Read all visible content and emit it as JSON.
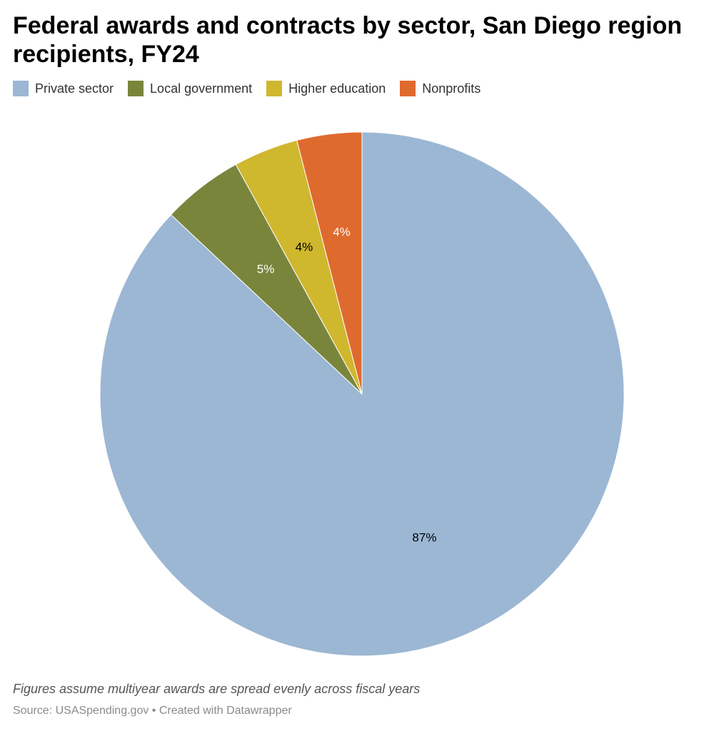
{
  "title": "Federal awards and contracts by sector, San Diego region recipients, FY24",
  "note": "Figures assume multiyear awards are spread evenly across fiscal years",
  "source": "Source: USASpending.gov • Created with Datawrapper",
  "chart_data": {
    "type": "pie",
    "title": "Federal awards and contracts by sector, San Diego region recipients, FY24",
    "legend_position": "top-left",
    "slices": [
      {
        "name": "Private sector",
        "value": 87,
        "label": "87%",
        "color": "#9bb7d3",
        "label_color": "#000000"
      },
      {
        "name": "Local government",
        "value": 5,
        "label": "5%",
        "color": "#7a853c",
        "label_color": "#ffffff"
      },
      {
        "name": "Higher education",
        "value": 4,
        "label": "4%",
        "color": "#cfb72e",
        "label_color": "#000000"
      },
      {
        "name": "Nonprofits",
        "value": 4,
        "label": "4%",
        "color": "#df6a2e",
        "label_color": "#ffffff"
      }
    ]
  }
}
